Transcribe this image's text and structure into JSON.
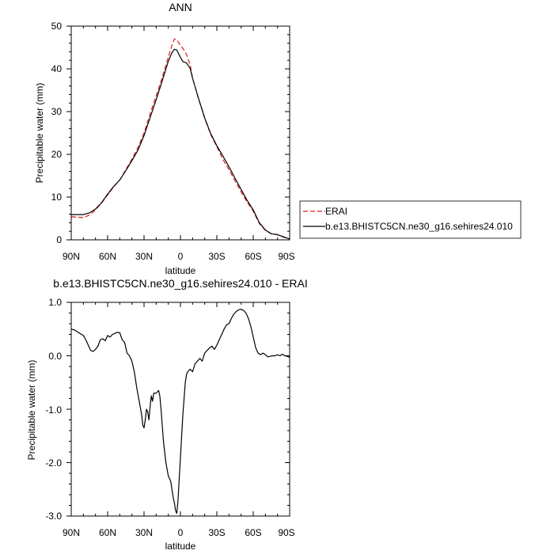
{
  "chart_data": [
    {
      "type": "line",
      "title": "ANN",
      "xlabel": "latitude",
      "ylabel": "Precipitable water (mm)",
      "x_reversed": true,
      "xlim": [
        90,
        -90
      ],
      "ylim": [
        0,
        50
      ],
      "xticks": [
        90,
        60,
        30,
        0,
        -30,
        -60,
        -90
      ],
      "xtick_labels": [
        "90N",
        "60N",
        "30N",
        "0",
        "30S",
        "60S",
        "90S"
      ],
      "yticks": [
        0,
        10,
        20,
        30,
        40,
        50
      ],
      "ytick_labels": [
        "0",
        "10",
        "20",
        "30",
        "40",
        "50"
      ],
      "legend_position": "right",
      "series": [
        {
          "name": "ERAI",
          "color": "#e41a1c",
          "dash": "dashed",
          "x": [
            90,
            80,
            75,
            70,
            65,
            60,
            55,
            50,
            45,
            40,
            35,
            30,
            25,
            20,
            15,
            10,
            7,
            5,
            3,
            0,
            -2,
            -5,
            -8,
            -10,
            -15,
            -20,
            -25,
            -30,
            -35,
            -40,
            -45,
            -50,
            -55,
            -60,
            -65,
            -70,
            -75,
            -80,
            -85,
            -90
          ],
          "y": [
            5.4,
            5.2,
            5.8,
            7.0,
            8.6,
            10.5,
            12.4,
            14.0,
            16.4,
            18.9,
            21.6,
            25.0,
            29.5,
            33.7,
            38.0,
            42.8,
            45.5,
            47.0,
            46.8,
            45.5,
            44.8,
            43.4,
            40.9,
            37.8,
            32.9,
            28.4,
            24.6,
            21.8,
            18.8,
            16.4,
            13.8,
            11.2,
            8.8,
            6.7,
            3.8,
            2.2,
            1.4,
            1.2,
            0.6,
            0.2
          ]
        },
        {
          "name": "b.e13.BHISTC5CN.ne30_g16.sehires24.010",
          "color": "#000000",
          "dash": "solid",
          "x": [
            90,
            80,
            75,
            70,
            65,
            60,
            55,
            50,
            45,
            40,
            35,
            30,
            25,
            20,
            15,
            10,
            7,
            5,
            3,
            0,
            -2,
            -5,
            -8,
            -10,
            -15,
            -20,
            -25,
            -30,
            -35,
            -40,
            -45,
            -50,
            -55,
            -60,
            -65,
            -70,
            -75,
            -80,
            -85,
            -90
          ],
          "y": [
            5.9,
            5.9,
            6.3,
            7.2,
            8.7,
            10.7,
            12.5,
            14.0,
            16.2,
            18.5,
            21.0,
            24.4,
            28.6,
            32.8,
            37.2,
            41.8,
            43.8,
            44.6,
            44.4,
            42.7,
            41.7,
            41.4,
            40.1,
            37.8,
            33.0,
            28.5,
            24.8,
            22.0,
            19.6,
            17.1,
            14.4,
            11.8,
            9.2,
            7.0,
            4.0,
            2.3,
            1.4,
            1.2,
            0.7,
            0.2
          ]
        }
      ]
    },
    {
      "type": "line",
      "title": "b.e13.BHISTC5CN.ne30_g16.sehires24.010 - ERAI",
      "xlabel": "latitude",
      "ylabel": "Precipitable water (mm)",
      "x_reversed": true,
      "xlim": [
        90,
        -90
      ],
      "ylim": [
        -3.0,
        1.0
      ],
      "xticks": [
        90,
        60,
        30,
        0,
        -30,
        -60,
        -90
      ],
      "xtick_labels": [
        "90N",
        "60N",
        "30N",
        "0",
        "30S",
        "60S",
        "90S"
      ],
      "yticks": [
        1.0,
        0.0,
        -1.0,
        -2.0,
        -3.0
      ],
      "ytick_labels": [
        "1.0",
        "0.0",
        "-1.0",
        "-2.0",
        "-3.0"
      ],
      "series": [
        {
          "color": "#000000",
          "dash": "solid",
          "x": [
            90,
            87,
            85,
            83,
            80,
            78,
            76,
            74,
            72,
            70,
            68,
            66,
            64,
            62,
            60,
            58,
            56,
            54,
            52,
            50,
            48,
            46,
            44,
            42,
            40,
            38,
            36,
            34,
            32,
            31,
            30,
            29,
            28,
            27,
            26,
            25,
            24,
            23,
            22,
            20,
            18,
            17,
            16,
            15,
            14,
            12,
            10,
            8,
            7,
            6,
            5,
            4,
            3,
            2,
            1,
            0,
            -1,
            -2,
            -3,
            -4,
            -5,
            -6,
            -8,
            -10,
            -12,
            -14,
            -16,
            -18,
            -20,
            -22,
            -24,
            -26,
            -28,
            -30,
            -32,
            -34,
            -36,
            -38,
            -40,
            -42,
            -44,
            -46,
            -48,
            -50,
            -52,
            -54,
            -56,
            -58,
            -60,
            -62,
            -64,
            -66,
            -68,
            -70,
            -72,
            -74,
            -76,
            -78,
            -80,
            -82,
            -84,
            -86,
            -88,
            -90
          ],
          "y": [
            0.5,
            0.48,
            0.45,
            0.42,
            0.38,
            0.3,
            0.2,
            0.1,
            0.08,
            0.12,
            0.18,
            0.3,
            0.32,
            0.28,
            0.38,
            0.35,
            0.4,
            0.42,
            0.44,
            0.43,
            0.3,
            0.25,
            0.05,
            0.0,
            -0.1,
            -0.3,
            -0.6,
            -0.85,
            -1.1,
            -1.3,
            -1.35,
            -1.2,
            -1.0,
            -1.05,
            -1.2,
            -0.95,
            -0.75,
            -0.85,
            -0.7,
            -0.7,
            -0.65,
            -0.75,
            -1.0,
            -1.3,
            -1.6,
            -2.0,
            -2.25,
            -2.35,
            -2.5,
            -2.65,
            -2.75,
            -2.9,
            -2.95,
            -2.7,
            -2.3,
            -1.9,
            -1.5,
            -1.1,
            -0.8,
            -0.5,
            -0.35,
            -0.3,
            -0.25,
            -0.3,
            -0.15,
            -0.1,
            -0.05,
            -0.1,
            0.05,
            0.1,
            0.15,
            0.18,
            0.12,
            0.2,
            0.3,
            0.4,
            0.5,
            0.58,
            0.6,
            0.7,
            0.78,
            0.83,
            0.86,
            0.87,
            0.85,
            0.8,
            0.7,
            0.55,
            0.35,
            0.15,
            0.05,
            0.02,
            0.05,
            0.02,
            -0.02,
            -0.01,
            0.0,
            0.0,
            0.02,
            0.0,
            0.03,
            0.0,
            -0.01,
            -0.03
          ]
        }
      ]
    }
  ]
}
